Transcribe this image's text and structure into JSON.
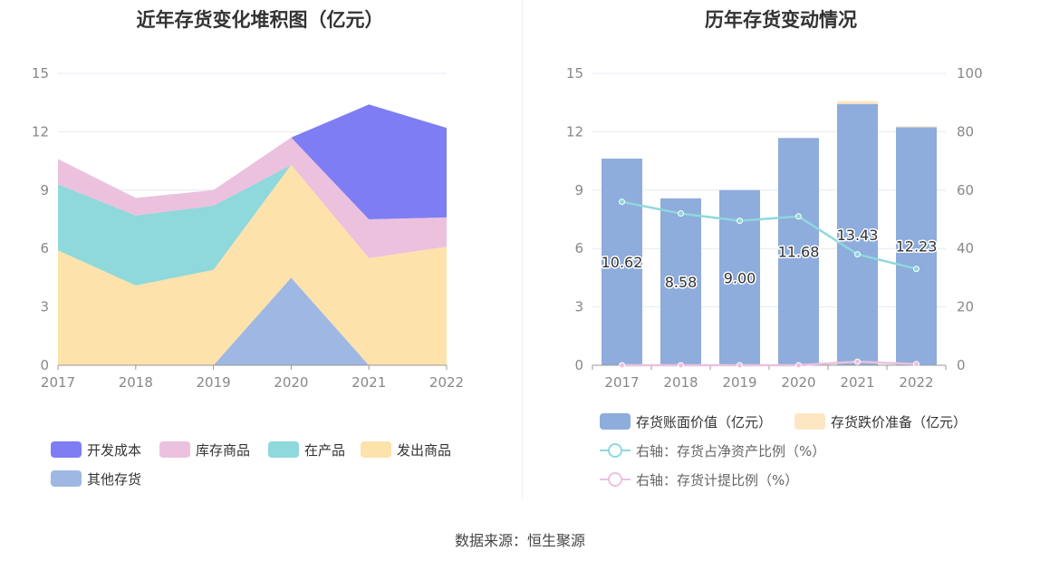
{
  "footer": {
    "source": "数据来源：恒生聚源"
  },
  "colors": {
    "dev_cost": "#7f7df4",
    "stock_goods": "#ebc1de",
    "wip": "#8fd8dc",
    "shipped": "#fee2ab",
    "other": "#9fb8e3",
    "bar_book": "#8eacdc",
    "bar_reserve": "#fde7c3",
    "line_ratio": "#8fd8dc",
    "line_provision": "#ebc1de"
  },
  "chart_data": [
    {
      "type": "area",
      "stacked": true,
      "title": "近年存货变化堆积图（亿元）",
      "x": [
        "2017",
        "2018",
        "2019",
        "2020",
        "2021",
        "2022"
      ],
      "ylim": [
        0,
        15
      ],
      "yticks": [
        0,
        3,
        6,
        9,
        12,
        15
      ],
      "grid": true,
      "legend_position": "bottom",
      "series": [
        {
          "name": "其他存货",
          "color_key": "other",
          "values": [
            0,
            0,
            0,
            4.5,
            0,
            0
          ]
        },
        {
          "name": "发出商品",
          "color_key": "shipped",
          "values": [
            5.9,
            4.1,
            4.9,
            5.8,
            5.5,
            6.1
          ]
        },
        {
          "name": "在产品",
          "color_key": "wip",
          "values": [
            3.4,
            3.6,
            3.3,
            0,
            0,
            0
          ]
        },
        {
          "name": "库存商品",
          "color_key": "stock_goods",
          "values": [
            1.3,
            0.9,
            0.8,
            1.4,
            2.0,
            1.5
          ]
        },
        {
          "name": "开发成本",
          "color_key": "dev_cost",
          "values": [
            0,
            0,
            0,
            0,
            5.9,
            4.6
          ]
        }
      ],
      "legend_order": [
        "开发成本",
        "库存商品",
        "在产品",
        "发出商品",
        "其他存货"
      ]
    },
    {
      "type": "bar",
      "title": "历年存货变动情况",
      "x": [
        "2017",
        "2018",
        "2019",
        "2020",
        "2021",
        "2022"
      ],
      "ylim": [
        0,
        15
      ],
      "yticks": [
        0,
        3,
        6,
        9,
        12,
        15
      ],
      "y2lim": [
        0,
        100
      ],
      "y2ticks": [
        0,
        20,
        40,
        60,
        80,
        100
      ],
      "grid": true,
      "legend_position": "bottom",
      "bars": [
        {
          "name": "存货账面价值（亿元）",
          "color_key": "bar_book",
          "values": [
            10.62,
            8.58,
            9.0,
            11.68,
            13.43,
            12.23
          ],
          "labels": [
            "10.62",
            "8.58",
            "9.00",
            "11.68",
            "13.43",
            "12.23"
          ]
        },
        {
          "name": "存货跌价准备（亿元）",
          "color_key": "bar_reserve",
          "values": [
            0,
            0,
            0,
            0,
            0.15,
            0.05
          ]
        }
      ],
      "lines": [
        {
          "name": "右轴：存货占净资产比例（%）",
          "color_key": "line_ratio",
          "axis": "right",
          "values": [
            56,
            52,
            49.5,
            51,
            38,
            33
          ]
        },
        {
          "name": "右轴：存货计提比例（%）",
          "color_key": "line_provision",
          "axis": "right",
          "values": [
            0,
            0,
            0,
            0,
            1.2,
            0.4
          ]
        }
      ]
    }
  ]
}
